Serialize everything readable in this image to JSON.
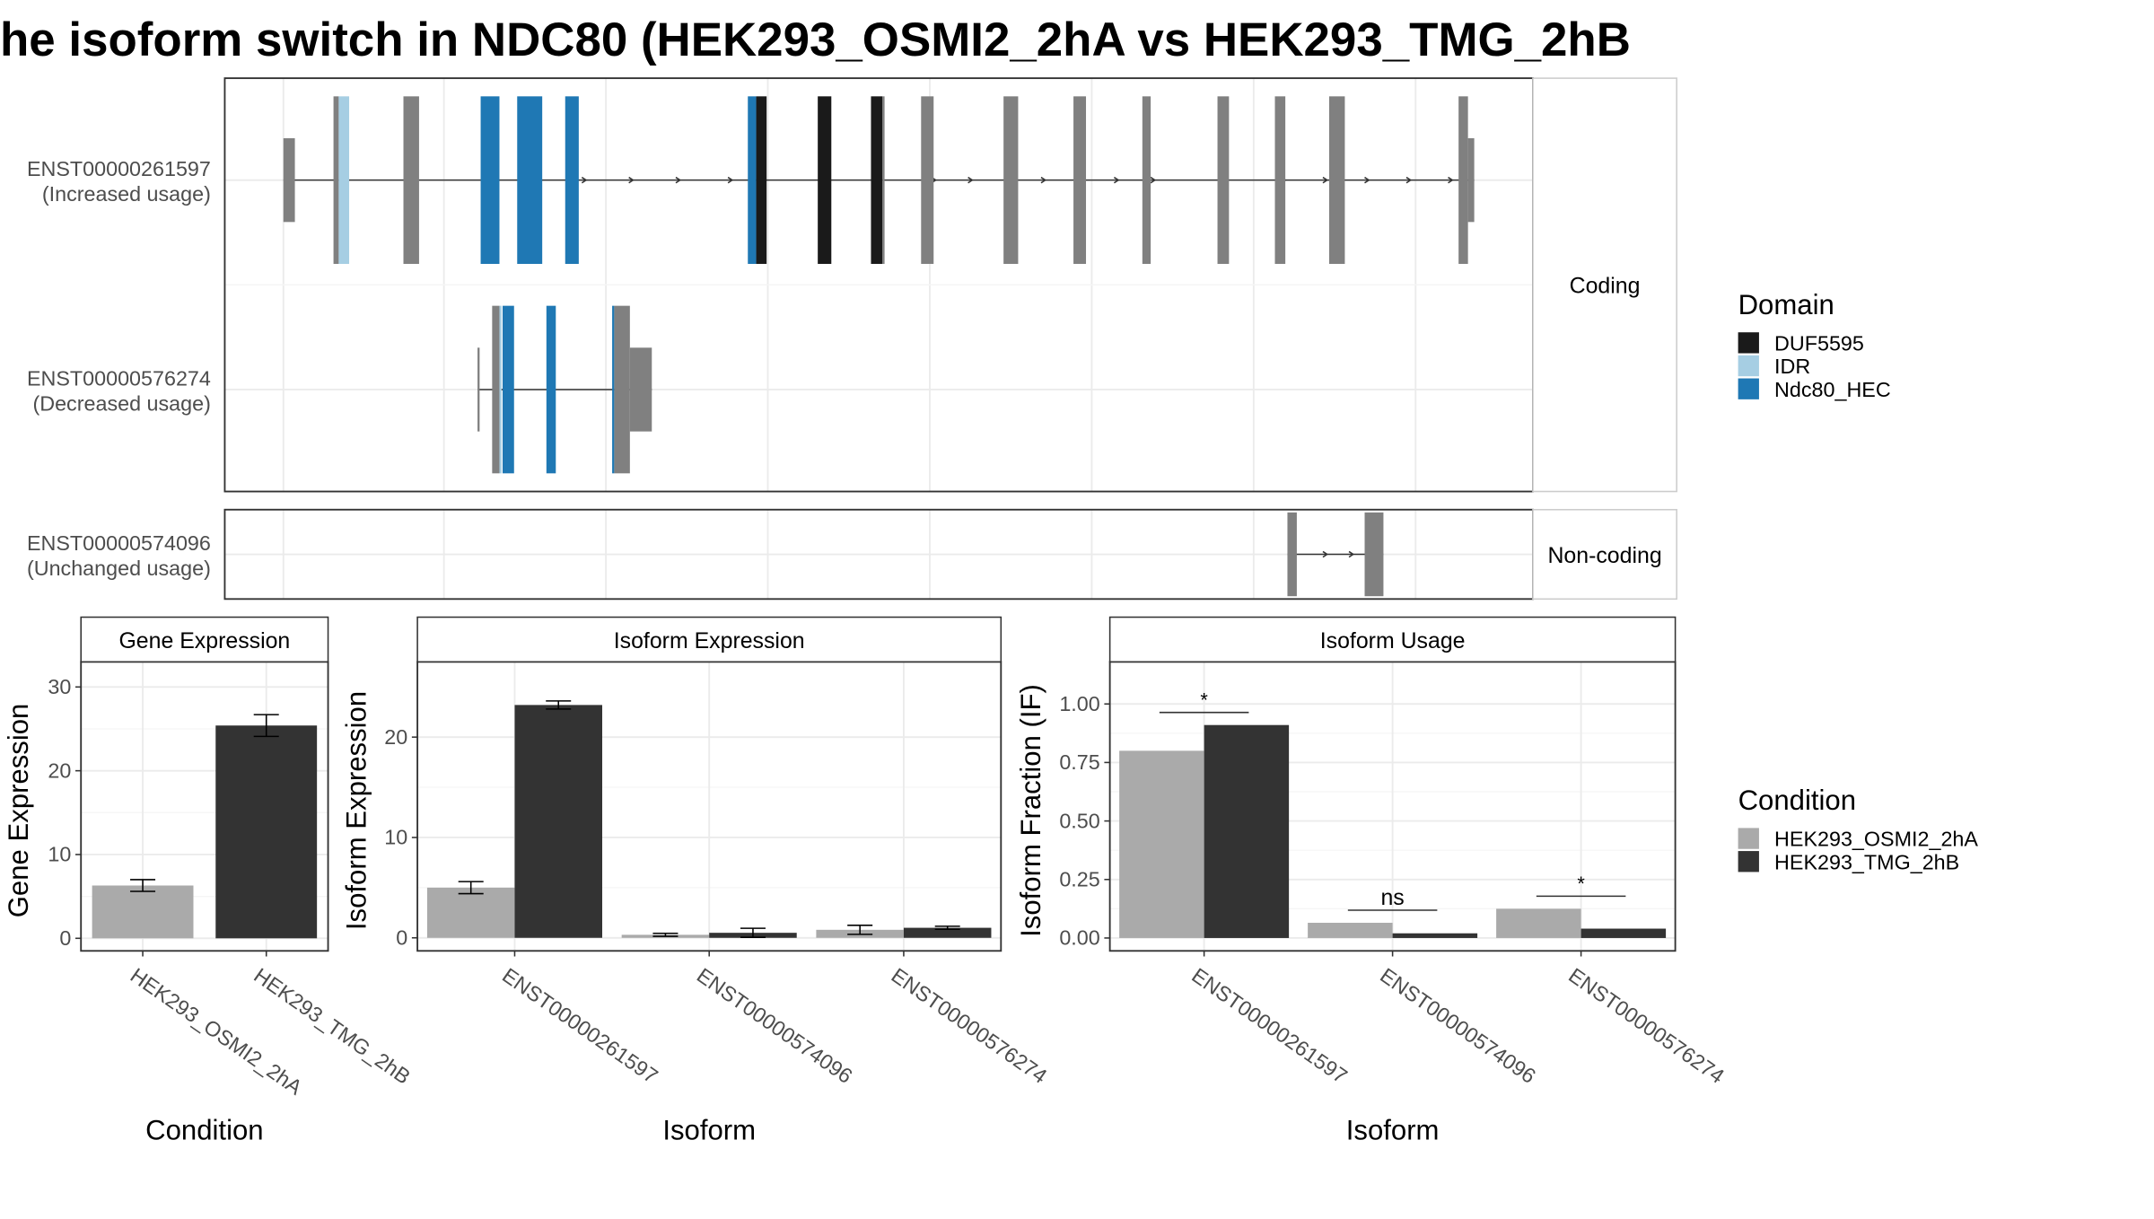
{
  "title": "he isoform switch in NDC80 (HEK293_OSMI2_2hA vs HEK293_TMG_2hB",
  "colors": {
    "DUF5595": "#1a1a1a",
    "IDR": "#a6cee3",
    "Ndc80_HEC": "#1f78b4",
    "none": "#808080",
    "cond1": "#aaaaaa",
    "cond2": "#333333"
  },
  "legends": {
    "domain": {
      "title": "Domain",
      "items": [
        "DUF5595",
        "IDR",
        "Ndc80_HEC"
      ]
    },
    "condition": {
      "title": "Condition",
      "items": [
        "HEK293_OSMI2_2hA",
        "HEK293_TMG_2hB"
      ]
    }
  },
  "chart_data": [
    {
      "type": "gene-structure",
      "panels": [
        {
          "strip": "Coding",
          "transcripts": [
            {
              "id": "ENST00000261597",
              "label": "(Increased usage)",
              "exons": [
                {
                  "s": 0.0,
                  "e": 1.1,
                  "c": "none"
                },
                {
                  "s": 4.8,
                  "e": 5.3,
                  "c": "none"
                },
                {
                  "s": 5.3,
                  "e": 6.3,
                  "c": "IDR"
                },
                {
                  "s": 11.5,
                  "e": 13.0,
                  "c": "none"
                },
                {
                  "s": 18.9,
                  "e": 20.7,
                  "c": "Ndc80_HEC"
                },
                {
                  "s": 22.4,
                  "e": 24.8,
                  "c": "Ndc80_HEC"
                },
                {
                  "s": 27.0,
                  "e": 28.3,
                  "c": "Ndc80_HEC"
                },
                {
                  "s": 44.5,
                  "e": 45.3,
                  "c": "Ndc80_HEC"
                },
                {
                  "s": 45.3,
                  "e": 46.3,
                  "c": "DUF5595"
                },
                {
                  "s": 51.2,
                  "e": 52.5,
                  "c": "DUF5595"
                },
                {
                  "s": 56.3,
                  "e": 57.4,
                  "c": "DUF5595"
                },
                {
                  "s": 57.4,
                  "e": 57.6,
                  "c": "none"
                },
                {
                  "s": 61.1,
                  "e": 62.3,
                  "c": "none"
                },
                {
                  "s": 69.0,
                  "e": 70.4,
                  "c": "none"
                },
                {
                  "s": 75.7,
                  "e": 76.9,
                  "c": "none"
                },
                {
                  "s": 82.3,
                  "e": 83.1,
                  "c": "none"
                },
                {
                  "s": 89.5,
                  "e": 90.6,
                  "c": "none"
                },
                {
                  "s": 95.0,
                  "e": 96.0,
                  "c": "none"
                },
                {
                  "s": 100.2,
                  "e": 101.7,
                  "c": "none"
                },
                {
                  "s": 112.6,
                  "e": 113.5,
                  "c": "none"
                },
                {
                  "s": 113.5,
                  "e": 114.1,
                  "c": "none"
                }
              ],
              "arrows": [
                29.0,
                33.5,
                38.0,
                43.0,
                57.0,
                62.5,
                66.0,
                70.0,
                73.0,
                80.0,
                83.5,
                96.0,
                100.0,
                104.0,
                108.0,
                112.0
              ]
            },
            {
              "id": "ENST00000576274",
              "label": "(Decreased usage)",
              "exons": [
                {
                  "s": 18.6,
                  "e": 18.8,
                  "c": "none"
                },
                {
                  "s": 20.0,
                  "e": 20.7,
                  "c": "none"
                },
                {
                  "s": 20.7,
                  "e": 20.9,
                  "c": "IDR"
                },
                {
                  "s": 21.0,
                  "e": 22.1,
                  "c": "Ndc80_HEC"
                },
                {
                  "s": 25.2,
                  "e": 26.1,
                  "c": "Ndc80_HEC"
                },
                {
                  "s": 31.5,
                  "e": 31.7,
                  "c": "Ndc80_HEC"
                },
                {
                  "s": 31.7,
                  "e": 33.2,
                  "c": "none"
                },
                {
                  "s": 33.2,
                  "e": 35.3,
                  "c": "none"
                }
              ],
              "arrows": []
            }
          ]
        },
        {
          "strip": "Non-coding",
          "transcripts": [
            {
              "id": "ENST00000574096",
              "label": "(Unchanged usage)",
              "exons": [
                {
                  "s": 96.2,
                  "e": 97.1,
                  "c": "none"
                },
                {
                  "s": 103.6,
                  "e": 105.4,
                  "c": "none"
                }
              ],
              "arrows": [
                100.0,
                102.5
              ]
            }
          ]
        }
      ]
    },
    {
      "type": "bar",
      "strip": "Gene Expression",
      "xlabel": "Condition",
      "ylabel": "Gene Expression",
      "ylim": [
        0,
        30
      ],
      "yticks": [
        0,
        10,
        20,
        30
      ],
      "categories": [
        "HEK293_OSMI2_2hA",
        "HEK293_TMG_2hB"
      ],
      "values": [
        6.3,
        25.4
      ],
      "errors": [
        0.7,
        1.3
      ]
    },
    {
      "type": "bar",
      "strip": "Isoform Expression",
      "xlabel": "Isoform",
      "ylabel": "Isoform Expression",
      "ylim": [
        0,
        25
      ],
      "yticks": [
        0,
        10,
        20
      ],
      "categories": [
        "ENST00000261597",
        "ENST00000574096",
        "ENST00000576274"
      ],
      "series": [
        {
          "name": "HEK293_OSMI2_2hA",
          "values": [
            5.0,
            0.3,
            0.8
          ],
          "errors": [
            0.6,
            0.15,
            0.45
          ]
        },
        {
          "name": "HEK293_TMG_2hB",
          "values": [
            23.2,
            0.5,
            1.0
          ],
          "errors": [
            0.4,
            0.45,
            0.15
          ]
        }
      ]
    },
    {
      "type": "bar",
      "strip": "Isoform Usage",
      "xlabel": "Isoform",
      "ylabel": "Isoform Fraction (IF)",
      "ylim": [
        0,
        1.1
      ],
      "yticks": [
        0.0,
        0.25,
        0.5,
        0.75,
        1.0
      ],
      "ytick_labels": [
        "0.00",
        "0.25",
        "0.50",
        "0.75",
        "1.00"
      ],
      "categories": [
        "ENST00000261597",
        "ENST00000574096",
        "ENST00000576274"
      ],
      "series": [
        {
          "name": "HEK293_OSMI2_2hA",
          "values": [
            0.8,
            0.065,
            0.125
          ]
        },
        {
          "name": "HEK293_TMG_2hB",
          "values": [
            0.91,
            0.02,
            0.04
          ]
        }
      ],
      "significance": [
        "*",
        "ns",
        "*"
      ]
    }
  ]
}
